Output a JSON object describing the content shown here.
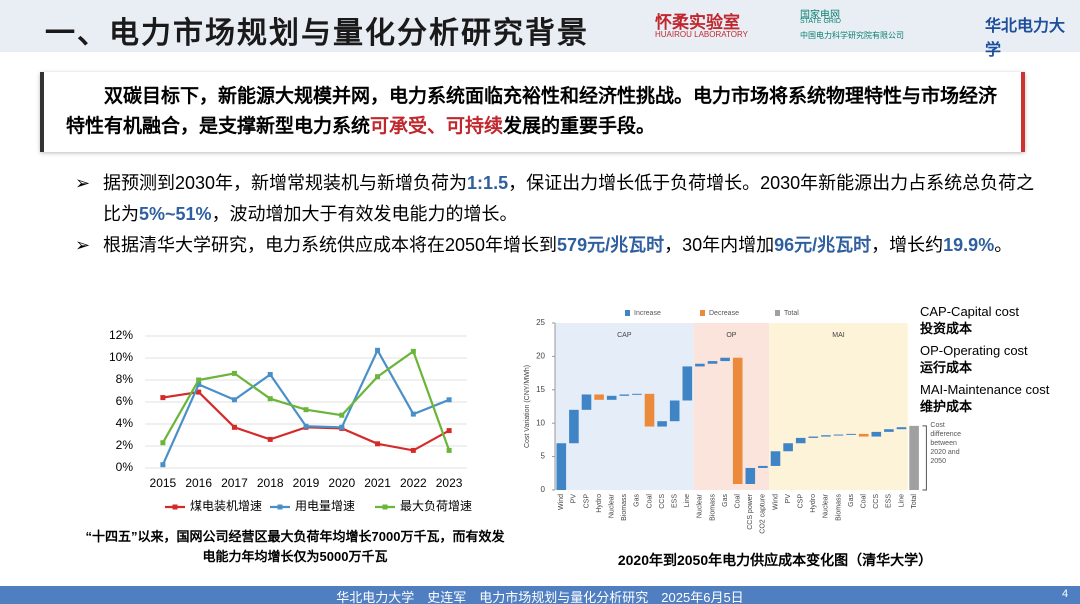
{
  "header": {
    "title": "一、电力市场规划与量化分析研究背景",
    "logos": [
      "怀柔实验室",
      "HUAIROU LABORATORY",
      "国家电网",
      "STATE GRID",
      "中国电力科学研究院有限公司",
      "华北电力大学"
    ]
  },
  "intro": [
    {
      "text": "双碳目标下，新能源大规模并网，电力系统面临充裕性和经济性挑战。电力市场将系统物理特性与市场经济特性有机融合，是支撑新型电力系统"
    },
    {
      "text": "可承受、可持续",
      "highlight": true
    },
    {
      "text": "发展的重要手段。"
    }
  ],
  "bullets": [
    [
      {
        "text": "据预测到2030年，新增常规装机与新增负荷为"
      },
      {
        "text": "1:1.5",
        "highlight": true
      },
      {
        "text": "，保证出力增长低于负荷增长。2030年新能源出力占系统总负荷之比为"
      },
      {
        "text": "5%~51%",
        "highlight": true
      },
      {
        "text": "，波动增加大于有效发电能力的增长。"
      }
    ],
    [
      {
        "text": "根据清华大学研究，电力系统供应成本将在2050年增长到"
      },
      {
        "text": "579元/兆瓦时",
        "highlight": true
      },
      {
        "text": "，30年内增加"
      },
      {
        "text": "96元/兆瓦时",
        "highlight": true
      },
      {
        "text": "，增长约"
      },
      {
        "text": "19.9%",
        "highlight": true
      },
      {
        "text": "。"
      }
    ]
  ],
  "chart_data": [
    {
      "type": "line",
      "categories": [
        "2015",
        "2016",
        "2017",
        "2018",
        "2019",
        "2020",
        "2021",
        "2022",
        "2023"
      ],
      "series": [
        {
          "name": "煤电装机增速",
          "color": "#d42a2a",
          "values": [
            6.4,
            6.9,
            3.7,
            2.6,
            3.7,
            3.6,
            2.2,
            1.6,
            3.4
          ]
        },
        {
          "name": "用电量增速",
          "color": "#4a90c8",
          "values": [
            0.3,
            7.6,
            6.2,
            8.5,
            3.8,
            3.7,
            10.7,
            4.9,
            6.2
          ]
        },
        {
          "name": "最大负荷增速",
          "color": "#6ab53a",
          "values": [
            2.3,
            8.0,
            8.6,
            6.3,
            5.3,
            4.8,
            8.3,
            10.6,
            1.6
          ]
        }
      ],
      "ylim": [
        0,
        12
      ],
      "yticks": [
        {
          "value": 0,
          "label": "0%"
        },
        {
          "value": 2,
          "label": "2%"
        },
        {
          "value": 4,
          "label": "4%"
        },
        {
          "value": 6,
          "label": "6%"
        },
        {
          "value": 8,
          "label": "8%"
        },
        {
          "value": 10,
          "label": "10%"
        },
        {
          "value": 12,
          "label": "12%"
        }
      ],
      "grid": true,
      "caption": "“十四五”以来，国网公司经营区最大负荷年均增长7000万千瓦，而有效发电能力年均增长仅为5000万千瓦"
    },
    {
      "type": "waterfall",
      "y_label": "Cost Variation (CNY/MWh)",
      "legend": [
        {
          "name": "Increase",
          "color": "#3f85c6"
        },
        {
          "name": "Decrease",
          "color": "#ec8a3c"
        },
        {
          "name": "Total",
          "color": "#a0a0a0"
        }
      ],
      "groups": [
        {
          "name": "CAP",
          "color": "#e4edf8",
          "categories": [
            "Wind",
            "PV",
            "CSP",
            "Hydro",
            "Nuclear",
            "Biomass",
            "Gas",
            "Coal",
            "CCS",
            "ESS",
            "Line"
          ],
          "values": [
            7,
            5,
            2.3,
            -0.8,
            0.6,
            0.2,
            0.1,
            -4.9,
            0.8,
            3.1,
            5.1
          ]
        },
        {
          "name": "OP",
          "color": "#fbe4dc",
          "categories": [
            "Nuclear",
            "Biomass",
            "Gas",
            "Coal",
            "CCS power",
            "CO2 capture"
          ],
          "values": [
            0.4,
            0.4,
            0.5,
            -18.9,
            2.4,
            0.3
          ]
        },
        {
          "name": "MAI",
          "color": "#fdf3d9",
          "categories": [
            "Wind",
            "PV",
            "CSP",
            "Hydro",
            "Nuclear",
            "Biomass",
            "Gas",
            "Coal",
            "CCS",
            "ESS",
            "Line"
          ],
          "values": [
            2.2,
            1.2,
            0.8,
            0.2,
            0.2,
            0.1,
            0.1,
            -0.4,
            0.7,
            0.4,
            0.3
          ]
        }
      ],
      "total": {
        "category": "Total",
        "value": 9.6
      },
      "ylim": [
        0,
        25
      ],
      "yticks": [
        0,
        5,
        10,
        15,
        20,
        25
      ],
      "annotation": "Cost difference between 2020 and 2050",
      "notes": [
        "CAP-Capital cost",
        "投资成本",
        "OP-Operating cost",
        "运行成本",
        "MAI-Maintenance cost",
        "维护成本"
      ],
      "caption": "2020年到2050年电力供应成本变化图（清华大学）"
    }
  ],
  "footer": {
    "text": "华北电力大学　史连军　电力市场规划与量化分析研究　2025年6月5日",
    "page": "4"
  }
}
